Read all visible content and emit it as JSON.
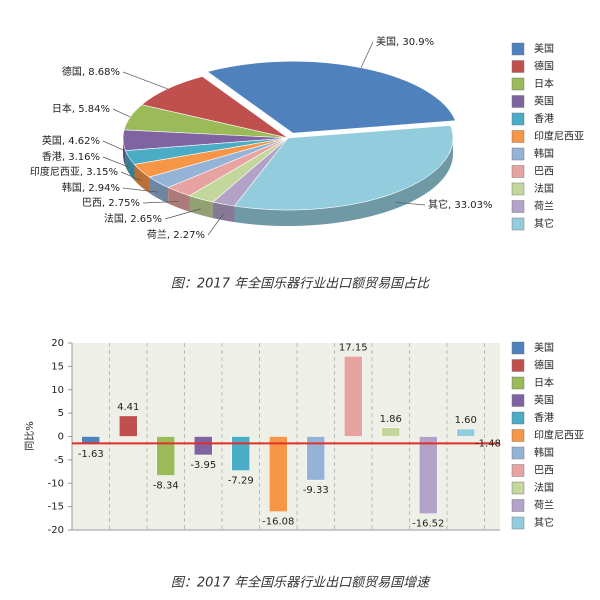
{
  "chart_data": [
    {
      "type": "pie",
      "caption": "图：2017 年全国乐器行业出口额贸易国占比",
      "legend": "right",
      "categories": [
        "美国",
        "德国",
        "日本",
        "英国",
        "香港",
        "印度尼西亚",
        "韩国",
        "巴西",
        "法国",
        "荷兰",
        "其它"
      ],
      "values": [
        30.9,
        8.68,
        5.84,
        4.62,
        3.16,
        3.15,
        2.94,
        2.75,
        2.65,
        2.27,
        33.03
      ],
      "value_labels": [
        "美国, 30.9%",
        "德国, 8.68%",
        "日本, 5.84%",
        "英国, 4.62%",
        "香港, 3.16%",
        "印度尼西亚, 3.15%",
        "韩国, 2.94%",
        "巴西, 2.75%",
        "法国, 2.65%",
        "荷兰, 2.27%",
        "其它, 33.03%"
      ],
      "colors": [
        "#4f81bd",
        "#c0504d",
        "#9bbb59",
        "#8064a2",
        "#4bacc6",
        "#f79646",
        "#95b3d7",
        "#e6a3a1",
        "#c3d69b",
        "#b3a2c7",
        "#93cddd"
      ]
    },
    {
      "type": "bar",
      "caption": "图：2017 年全国乐器行业出口额贸易国增速",
      "legend": "right",
      "ylabel": "同比%",
      "categories": [
        "美国",
        "德国",
        "日本",
        "英国",
        "香港",
        "印度尼西亚",
        "韩国",
        "巴西",
        "法国",
        "荷兰",
        "其它"
      ],
      "values": [
        -1.63,
        4.41,
        -8.34,
        -3.95,
        -7.29,
        -16.08,
        -9.33,
        17.15,
        1.86,
        -16.52,
        1.6
      ],
      "value_labels": [
        "-1.63",
        "4.41",
        "-8.34",
        "-3.95",
        "-7.29",
        "-16.08",
        "-9.33",
        "17.15",
        "1.86",
        "-16.52",
        "1.60"
      ],
      "colors": [
        "#4f81bd",
        "#c0504d",
        "#9bbb59",
        "#8064a2",
        "#4bacc6",
        "#f79646",
        "#95b3d7",
        "#e6a3a1",
        "#c3d69b",
        "#b3a2c7",
        "#93cddd"
      ],
      "reference_line": {
        "value": -1.48,
        "color": "#e0302a"
      },
      "ylim": [
        -20,
        20
      ],
      "yticks": [
        -20,
        -15,
        -10,
        -5,
        0,
        5,
        10,
        15,
        20
      ]
    }
  ]
}
